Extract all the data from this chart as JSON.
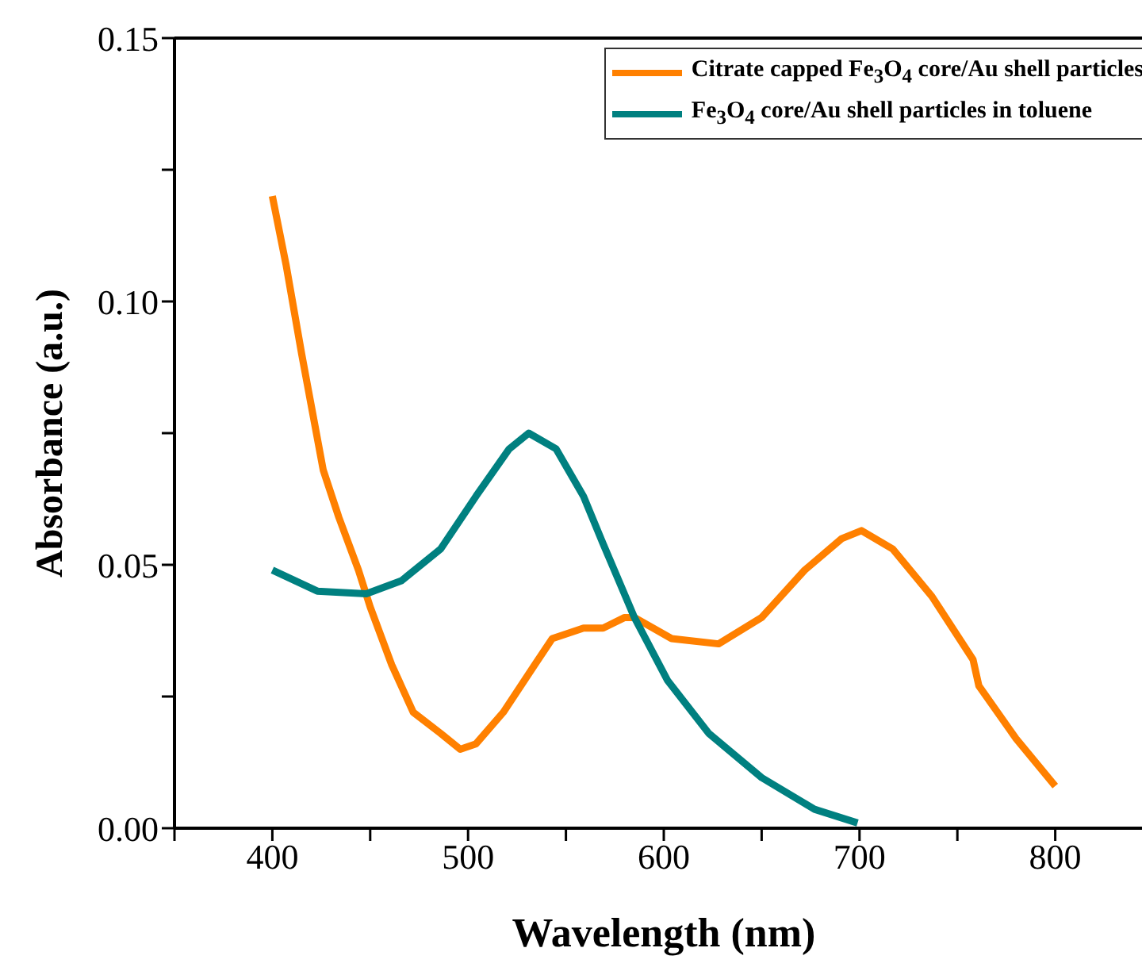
{
  "chart_data": {
    "type": "line",
    "xlabel": "Wavelength (nm)",
    "ylabel": "Absorbance (a.u.)",
    "xlim": [
      350,
      850
    ],
    "ylim": [
      0,
      0.15
    ],
    "xticks": [
      {
        "value": 350,
        "label": null
      },
      400,
      {
        "value": 450,
        "label": null
      },
      500,
      {
        "value": 550,
        "label": null
      },
      600,
      {
        "value": 650,
        "label": null
      },
      700,
      {
        "value": 750,
        "label": null
      },
      800
    ],
    "yticks": [
      {
        "value": 0,
        "label": "0.00"
      },
      {
        "value": 0.025,
        "label": null
      },
      {
        "value": 0.05,
        "label": "0.05"
      },
      {
        "value": 0.075,
        "label": null
      },
      {
        "value": 0.1,
        "label": "0.10"
      },
      {
        "value": 0.125,
        "label": null
      },
      {
        "value": 0.15,
        "label": "0.15"
      }
    ],
    "grid": false,
    "legend": "top right",
    "marker": "none",
    "line_style": "solid",
    "series": [
      {
        "name": "Citrate capped Fe$_{3}$O$_{4}$ core/Au shell particles",
        "color": "#ff8000",
        "x": [
          400,
          407,
          415,
          418,
          426,
          434,
          444,
          450,
          461,
          472,
          486,
          496,
          504,
          518,
          534,
          543,
          559,
          569,
          580,
          585,
          604,
          628,
          650,
          672,
          691,
          701,
          717,
          737,
          758,
          761,
          780,
          800
        ],
        "values": [
          0.12,
          0.107,
          0.09,
          0.084,
          0.068,
          0.059,
          0.049,
          0.042,
          0.031,
          0.022,
          0.018,
          0.015,
          0.016,
          0.022,
          0.031,
          0.036,
          0.038,
          0.038,
          0.04,
          0.04,
          0.036,
          0.035,
          0.04,
          0.049,
          0.055,
          0.0565,
          0.053,
          0.044,
          0.032,
          0.027,
          0.017,
          0.008
        ]
      },
      {
        "name": "Fe$_{3}$O$_{4}$ core/Au shell particles in toluene",
        "color": "#008080",
        "x": [
          400,
          423,
          448,
          466,
          486,
          504,
          521,
          531,
          545,
          559,
          569,
          585,
          602,
          623,
          650,
          677,
          699
        ],
        "values": [
          0.049,
          0.045,
          0.0445,
          0.047,
          0.053,
          0.063,
          0.072,
          0.075,
          0.072,
          0.063,
          0.054,
          0.04,
          0.028,
          0.018,
          0.0096,
          0.0036,
          0.001
        ]
      }
    ]
  }
}
